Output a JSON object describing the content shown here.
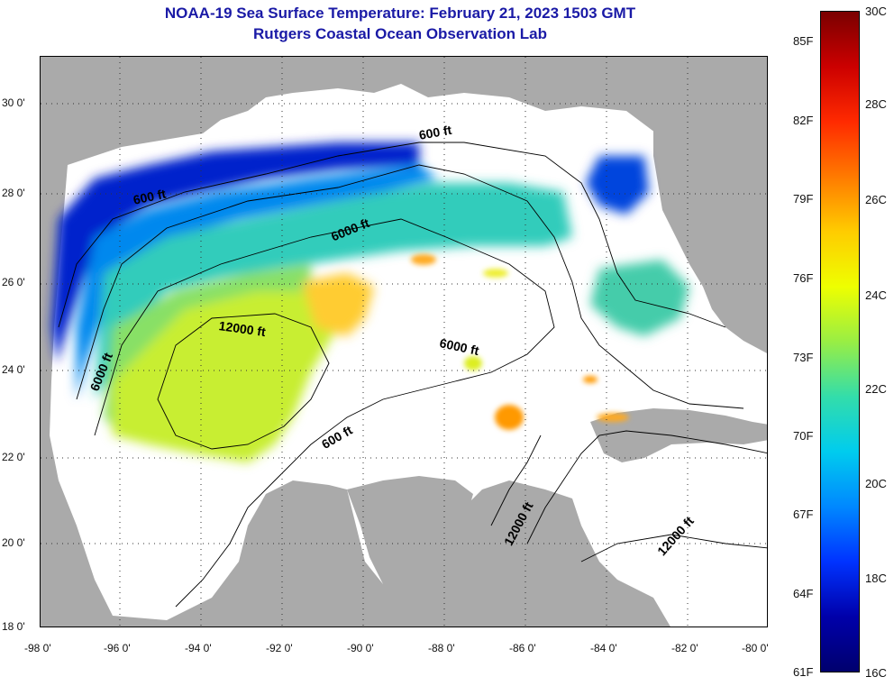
{
  "title": {
    "line1": "NOAA-19 Sea Surface Temperature:  February 21, 2023 1503 GMT",
    "line2": "Rutgers Coastal Ocean Observation Lab"
  },
  "axes": {
    "latitude_labels": [
      "30 0'",
      "28 0'",
      "26 0'",
      "24 0'",
      "22 0'",
      "20 0'",
      "18 0'"
    ],
    "longitude_labels": [
      "-98 0'",
      "-96 0'",
      "-94 0'",
      "-92 0'",
      "-90 0'",
      "-88 0'",
      "-86 0'",
      "-84 0'",
      "-82 0'",
      "-80 0'"
    ]
  },
  "colorbar": {
    "fahrenheit_labels": [
      "85F",
      "82F",
      "79F",
      "76F",
      "73F",
      "70F",
      "67F",
      "64F",
      "61F"
    ],
    "celsius_labels": [
      "30C",
      "28C",
      "26C",
      "24C",
      "22C",
      "20C",
      "18C",
      "16C"
    ],
    "gradient_colors": [
      "#7a0000",
      "#cc0000",
      "#ff2a00",
      "#ff7a00",
      "#ffcc00",
      "#eeff00",
      "#99ee44",
      "#33ddaa",
      "#00ccee",
      "#0088ff",
      "#0033ff",
      "#0000aa",
      "#00006e"
    ]
  },
  "contour_labels": [
    {
      "text": "600 ft"
    },
    {
      "text": "600 ft"
    },
    {
      "text": "6000 ft"
    },
    {
      "text": "12000 ft"
    },
    {
      "text": "6000 ft"
    },
    {
      "text": "6000 ft"
    },
    {
      "text": "600 ft"
    },
    {
      "text": "12000 ft"
    },
    {
      "text": "12000 ft"
    }
  ],
  "colors": {
    "land": "#aaaaaa",
    "cloud_no_data": "#ffffff",
    "title": "#1a1aa6"
  }
}
